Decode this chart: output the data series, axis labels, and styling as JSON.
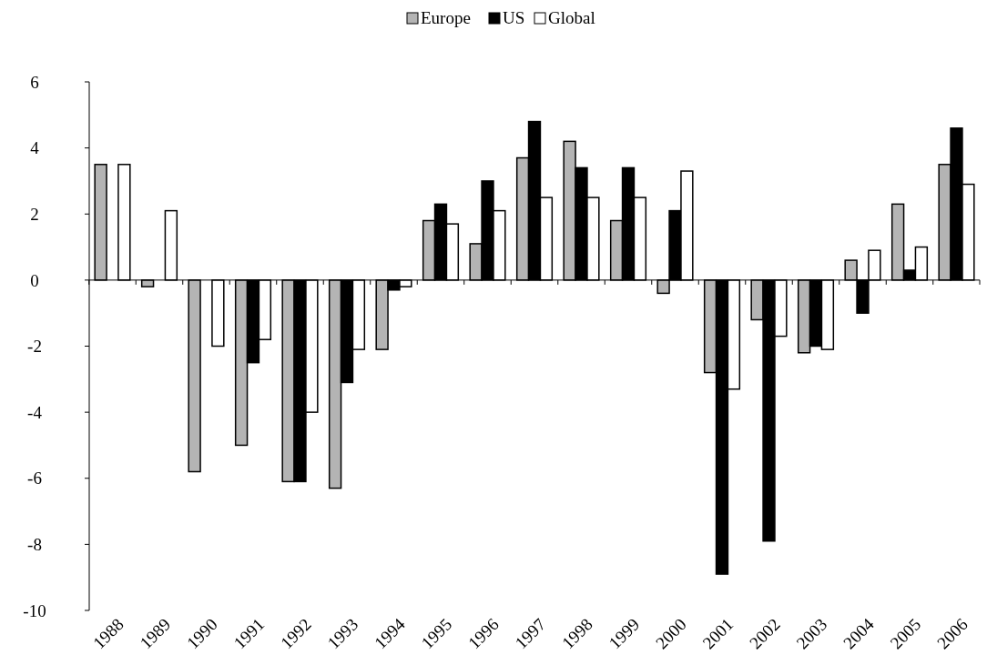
{
  "chart_data": {
    "type": "bar",
    "categories": [
      "1988",
      "1989",
      "1990",
      "1991",
      "1992",
      "1993",
      "1994",
      "1995",
      "1996",
      "1997",
      "1998",
      "1999",
      "2000",
      "2001",
      "2002",
      "2003",
      "2004",
      "2005",
      "2006"
    ],
    "series": [
      {
        "name": "Europe",
        "color": "#b4b4b4",
        "values": [
          3.5,
          -0.2,
          -5.8,
          -5.0,
          -6.1,
          -6.3,
          -2.1,
          1.8,
          1.1,
          3.7,
          4.2,
          1.8,
          -0.4,
          -2.8,
          -1.2,
          -2.2,
          0.6,
          2.3,
          3.5
        ]
      },
      {
        "name": "US",
        "color": "#000000",
        "values": [
          null,
          null,
          null,
          -2.5,
          -6.1,
          -3.1,
          -0.3,
          2.3,
          3.0,
          4.8,
          3.4,
          3.4,
          2.1,
          -8.9,
          -7.9,
          -2.0,
          -1.0,
          0.3,
          4.6
        ]
      },
      {
        "name": "Global",
        "color": "#ffffff",
        "values": [
          3.5,
          2.1,
          -2.0,
          -1.8,
          -4.0,
          -2.1,
          -0.2,
          1.7,
          2.1,
          2.5,
          2.5,
          2.5,
          3.3,
          -3.3,
          -1.7,
          -2.1,
          0.9,
          1.0,
          2.9
        ]
      }
    ],
    "ylim": [
      -10,
      6
    ],
    "yticks": [
      -10,
      -8,
      -6,
      -4,
      -2,
      0,
      2,
      4,
      6
    ],
    "legend": "top"
  }
}
